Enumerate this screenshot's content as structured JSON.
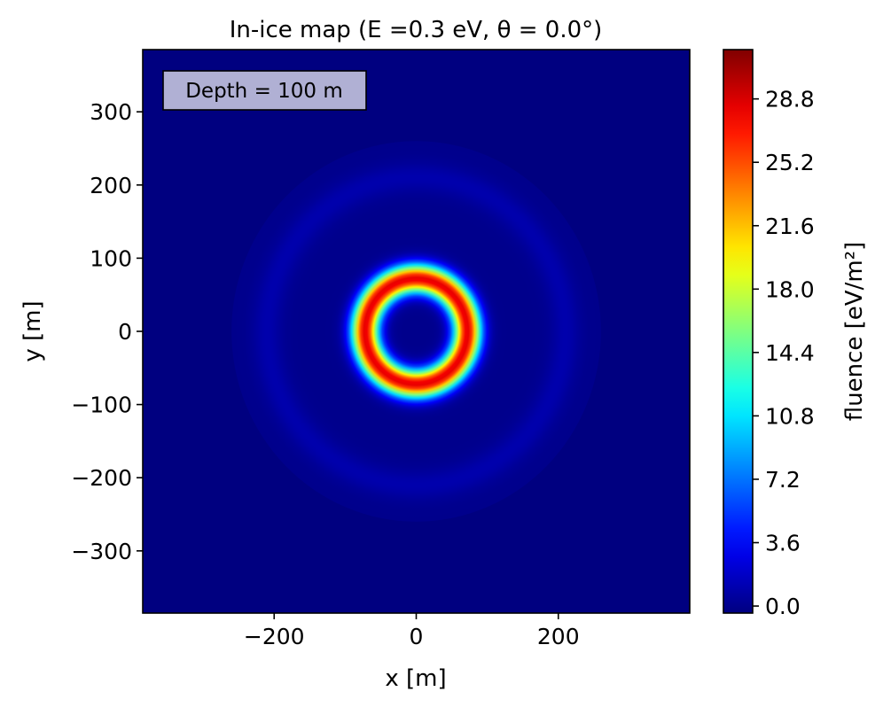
{
  "chart_data": {
    "type": "heatmap",
    "title": "In-ice map (E =0.3 eV, θ = 0.0°)",
    "annotation": "Depth = 100 m",
    "xlabel": "x [m]",
    "ylabel": "y [m]",
    "xlim": [
      -385,
      385
    ],
    "ylim": [
      -385,
      385
    ],
    "x_ticks": [
      {
        "value": -200,
        "label": "−200"
      },
      {
        "value": 0,
        "label": "0"
      },
      {
        "value": 200,
        "label": "200"
      }
    ],
    "y_ticks": [
      {
        "value": 300,
        "label": "300"
      },
      {
        "value": 200,
        "label": "200"
      },
      {
        "value": 100,
        "label": "100"
      },
      {
        "value": 0,
        "label": "0"
      },
      {
        "value": -100,
        "label": "−100"
      },
      {
        "value": -200,
        "label": "−200"
      },
      {
        "value": -300,
        "label": "−300"
      }
    ],
    "colormap": "jet",
    "colorbar": {
      "label": "fluence [eV/m²]",
      "min": -0.4,
      "max": 31.6,
      "ticks": [
        {
          "value": 0.0,
          "label": "0.0"
        },
        {
          "value": 3.6,
          "label": "3.6"
        },
        {
          "value": 7.2,
          "label": "7.2"
        },
        {
          "value": 10.8,
          "label": "10.8"
        },
        {
          "value": 14.4,
          "label": "14.4"
        },
        {
          "value": 18.0,
          "label": "18.0"
        },
        {
          "value": 21.6,
          "label": "21.6"
        },
        {
          "value": 25.2,
          "label": "25.2"
        },
        {
          "value": 28.8,
          "label": "28.8"
        }
      ]
    },
    "features": [
      {
        "shape": "ring",
        "center": [
          0,
          0
        ],
        "radius_m": 72,
        "width_m": 38,
        "peak_fluence": 28.5
      },
      {
        "shape": "ring",
        "center": [
          0,
          0
        ],
        "radius_m": 210,
        "width_m": 40,
        "peak_fluence": 1.0
      }
    ]
  }
}
